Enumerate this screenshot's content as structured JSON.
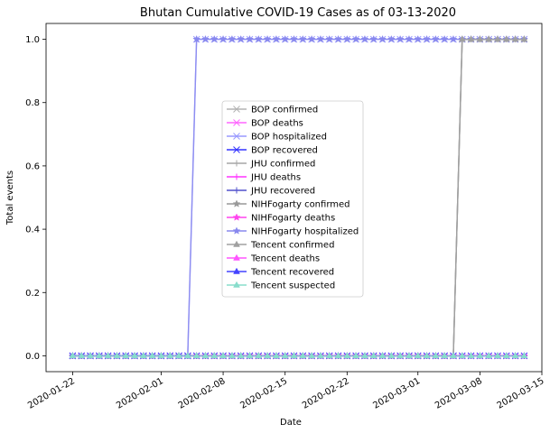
{
  "chart_data": {
    "type": "line",
    "title": "Bhutan Cumulative COVID-19 Cases as of 03-13-2020",
    "xlabel": "Date",
    "ylabel": "Total events",
    "x_start": "2020-01-22",
    "x_end": "2020-03-13",
    "xlim": [
      "2020-01-19",
      "2020-03-15"
    ],
    "ylim": [
      -0.05,
      1.05
    ],
    "x_ticks": [
      "2020-01-22",
      "2020-02-01",
      "2020-02-08",
      "2020-02-15",
      "2020-02-22",
      "2020-03-01",
      "2020-03-08",
      "2020-03-15"
    ],
    "y_ticks": [
      "0.0",
      "0.2",
      "0.4",
      "0.6",
      "0.8",
      "1.0"
    ],
    "legend_position": "center",
    "grid": false,
    "series": [
      {
        "name": "BOP confirmed",
        "color": "#b3b3b3",
        "marker": "x",
        "values": [
          [
            0,
            0
          ],
          [
            43,
            0
          ],
          [
            44,
            1
          ],
          [
            51,
            1
          ]
        ]
      },
      {
        "name": "BOP deaths",
        "color": "#ff66ff",
        "marker": "x",
        "values": [
          [
            0,
            0
          ],
          [
            51,
            0
          ]
        ]
      },
      {
        "name": "BOP hospitalized",
        "color": "#9999ff",
        "marker": "x",
        "values": [
          [
            0,
            0
          ],
          [
            13,
            0
          ],
          [
            14,
            1
          ],
          [
            51,
            1
          ]
        ]
      },
      {
        "name": "BOP recovered",
        "color": "#3333ff",
        "marker": "x",
        "values": [
          [
            0,
            0
          ],
          [
            51,
            0
          ]
        ]
      },
      {
        "name": "JHU confirmed",
        "color": "#a6a6a6",
        "marker": "+",
        "values": [
          [
            0,
            0
          ],
          [
            43,
            0
          ],
          [
            44,
            1
          ],
          [
            51,
            1
          ]
        ]
      },
      {
        "name": "JHU deaths",
        "color": "#ff33ff",
        "marker": "+",
        "values": [
          [
            0,
            0
          ],
          [
            51,
            0
          ]
        ]
      },
      {
        "name": "JHU recovered",
        "color": "#5050cc",
        "marker": "+",
        "values": [
          [
            0,
            0
          ],
          [
            51,
            0
          ]
        ]
      },
      {
        "name": "NIHFogarty confirmed",
        "color": "#999999",
        "marker": "*",
        "values": [
          [
            0,
            0
          ],
          [
            43,
            0
          ],
          [
            44,
            1
          ],
          [
            51,
            1
          ]
        ]
      },
      {
        "name": "NIHFogarty deaths",
        "color": "#ff44ee",
        "marker": "*",
        "values": [
          [
            0,
            0
          ],
          [
            51,
            0
          ]
        ]
      },
      {
        "name": "NIHFogarty hospitalized",
        "color": "#8888ee",
        "marker": "*",
        "values": [
          [
            0,
            0
          ],
          [
            13,
            0
          ],
          [
            14,
            1
          ],
          [
            51,
            1
          ]
        ]
      },
      {
        "name": "Tencent confirmed",
        "color": "#a0a0a0",
        "marker": "^",
        "values": [
          [
            0,
            0
          ],
          [
            43,
            0
          ],
          [
            44,
            1
          ],
          [
            51,
            1
          ]
        ]
      },
      {
        "name": "Tencent deaths",
        "color": "#ff55ff",
        "marker": "^",
        "values": [
          [
            0,
            0
          ],
          [
            51,
            0
          ]
        ]
      },
      {
        "name": "Tencent recovered",
        "color": "#4444ff",
        "marker": "^",
        "values": [
          [
            0,
            0
          ],
          [
            51,
            0
          ]
        ]
      },
      {
        "name": "Tencent suspected",
        "color": "#88ddcc",
        "marker": "^",
        "values": [
          [
            0,
            0
          ],
          [
            51,
            0
          ]
        ]
      }
    ]
  }
}
